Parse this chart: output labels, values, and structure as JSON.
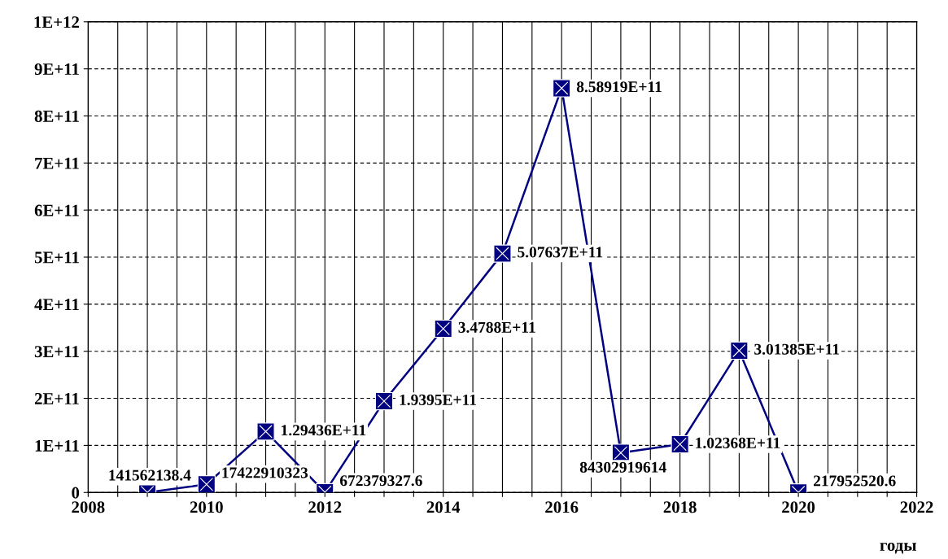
{
  "chart_data": {
    "type": "line",
    "xlabel": "годы",
    "x": [
      2009,
      2010,
      2011,
      2012,
      2013,
      2014,
      2015,
      2016,
      2017,
      2018,
      2019,
      2020
    ],
    "series": [
      {
        "color": "#000080",
        "values": [
          141562138.4,
          17422910323,
          129436000000,
          672379327.6,
          193950000000,
          347880000000,
          507637000000,
          858919000000,
          84302919614,
          102368000000,
          301385000000,
          217952520.6
        ],
        "value_labels": [
          "141562138.4",
          "17422910323",
          "1.29436E+11",
          "672379327.6",
          "1.9395E+11",
          "3.4788E+11",
          "5.07637E+11",
          "8.58919E+11",
          "84302919614",
          "1.02368E+11",
          "3.01385E+11",
          "217952520.6"
        ]
      }
    ],
    "xlim": [
      2008,
      2022
    ],
    "xticks": [
      2008,
      {
        "value": 2008.5,
        "label": null
      },
      2010,
      {
        "value": 2010.5,
        "label": null
      },
      2012,
      {
        "value": 2012.5,
        "label": null
      },
      2014,
      {
        "value": 2014.5,
        "label": null
      },
      2016,
      {
        "value": 2016.5,
        "label": null
      },
      2018,
      {
        "value": 2018.5,
        "label": null
      },
      2020,
      {
        "value": 2020.5,
        "label": null
      },
      2022,
      {
        "value": 2009,
        "label": null
      },
      {
        "value": 2009.5,
        "label": null
      },
      {
        "value": 2011,
        "label": null
      },
      {
        "value": 2011.5,
        "label": null
      },
      {
        "value": 2013,
        "label": null
      },
      {
        "value": 2013.5,
        "label": null
      },
      {
        "value": 2015,
        "label": null
      },
      {
        "value": 2015.5,
        "label": null
      },
      {
        "value": 2017,
        "label": null
      },
      {
        "value": 2017.5,
        "label": null
      },
      {
        "value": 2019,
        "label": null
      },
      {
        "value": 2019.5,
        "label": null
      },
      {
        "value": 2021,
        "label": null
      },
      {
        "value": 2021.5,
        "label": null
      }
    ],
    "ylim": [
      0,
      1000000000000
    ],
    "yticks": [
      0,
      {
        "value": 100000000000,
        "label": "1E+11"
      },
      {
        "value": 200000000000,
        "label": "2E+11"
      },
      {
        "value": 300000000000,
        "label": "3E+11"
      },
      {
        "value": 400000000000,
        "label": "4E+11"
      },
      {
        "value": 500000000000,
        "label": "5E+11"
      },
      {
        "value": 600000000000,
        "label": "6E+11"
      },
      {
        "value": 700000000000,
        "label": "7E+11"
      },
      {
        "value": 800000000000,
        "label": "8E+11"
      },
      {
        "value": 900000000000,
        "label": "9E+11"
      },
      {
        "value": 1000000000000,
        "label": "1E+12"
      }
    ],
    "grid": true,
    "marker": "square",
    "line_style": "solid",
    "legend": false
  }
}
